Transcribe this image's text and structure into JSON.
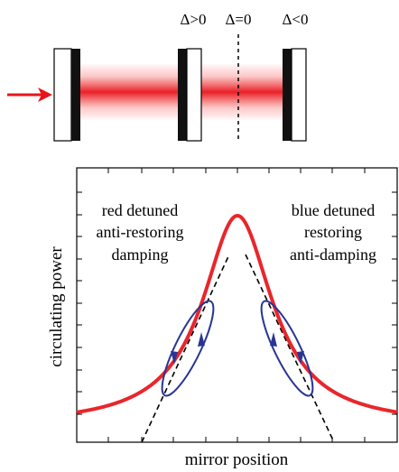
{
  "cavity": {
    "detuning_labels": [
      "Δ>0",
      "Δ=0",
      "Δ<0"
    ],
    "beam_color": "#e8141c",
    "input_arrow_color": "#e8141c"
  },
  "plot": {
    "curve_type": "lorentzian",
    "curve_color": "#e8262c",
    "tangent_line_style": "dashed",
    "ellipse_color": "#283593",
    "xlabel": "mirror position",
    "ylabel": "circulating power",
    "left_annotation": [
      "red detuned",
      "anti-restoring",
      "damping"
    ],
    "right_annotation": [
      "blue detuned",
      "restoring",
      "anti-damping"
    ]
  }
}
